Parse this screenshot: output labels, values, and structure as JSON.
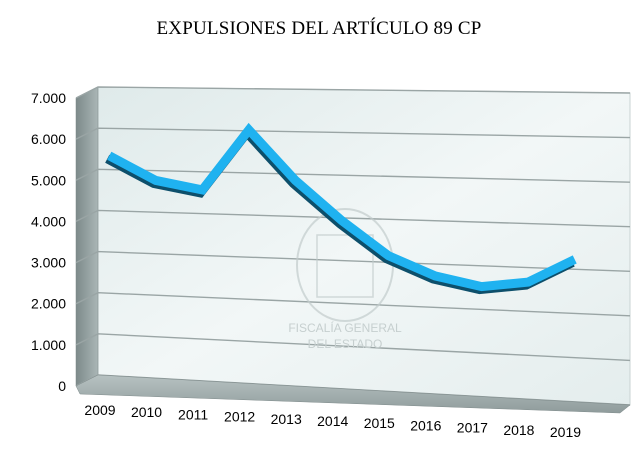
{
  "chart_data": {
    "type": "line",
    "title": "EXPULSIONES DEL ARTÍCULO 89 CP",
    "xlabel": "",
    "ylabel": "",
    "categories": [
      "2009",
      "2010",
      "2011",
      "2012",
      "2013",
      "2014",
      "2015",
      "2016",
      "2017",
      "2018",
      "2019"
    ],
    "values": [
      5450,
      4850,
      4620,
      6080,
      4850,
      3870,
      3020,
      2530,
      2270,
      2380,
      2930
    ],
    "ylim": [
      0,
      7000
    ],
    "yticks": [
      0,
      1000,
      2000,
      3000,
      4000,
      5000,
      6000,
      7000
    ],
    "ytick_labels": [
      "0",
      "1.000",
      "2.000",
      "3.000",
      "4.000",
      "5.000",
      "6.000",
      "7.000"
    ],
    "grid": true,
    "legend": "none",
    "style": "3d",
    "watermark": {
      "text_line1": "FISCALÍA GENERAL",
      "text_line2": "DEL ESTADO"
    },
    "colors": {
      "line": "#1fb2f0",
      "line_shadow": "#0d4f6b",
      "wall": "#e6f0f0",
      "grid": "#9aa5a5",
      "floor": "#a8b4b4",
      "side": "#8e9a9a"
    }
  }
}
